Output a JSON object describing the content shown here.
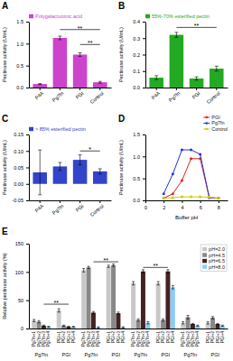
{
  "chart_data": [
    {
      "type": "bar",
      "title": "A",
      "categories": [
        "P4A",
        "Pg7fn",
        "PGI",
        "Control"
      ],
      "series": [
        {
          "name": "Polygalacturonic acid",
          "color": "#cc44cc",
          "values": [
            0.08,
            1.13,
            0.75,
            0.12
          ],
          "errors": [
            0.01,
            0.04,
            0.04,
            0.02
          ]
        }
      ],
      "ylabel": "Pectinase activity (U/mL)",
      "ylim": [
        0,
        1.5
      ],
      "yticks": [
        {
          "value": 0.0,
          "label": "0.0"
        },
        0.5,
        {
          "value": 1.0,
          "label": "1.0"
        },
        1.5
      ],
      "legend": "upper left",
      "annotations": [
        {
          "from": "Pg7fn",
          "to": "Control",
          "y": 1.32,
          "label": "**"
        },
        {
          "from": "PGI",
          "to": "Control",
          "y": 0.98,
          "label": "**"
        }
      ]
    },
    {
      "type": "bar",
      "title": "B",
      "categories": [
        "P4A",
        "Pg7fn",
        "PGI",
        "Control"
      ],
      "series": [
        {
          "name": "55%-70% esterified pectin",
          "color": "#22aa22",
          "values": [
            0.06,
            0.32,
            0.055,
            0.115
          ],
          "errors": [
            0.012,
            0.015,
            0.01,
            0.015
          ]
        }
      ],
      "ylabel": "Pectinase activity (U/mL)",
      "ylim": [
        0,
        0.4
      ],
      "yticks": [
        {
          "value": 0.0,
          "label": "0.0"
        },
        0.1,
        0.2,
        0.3,
        0.4
      ],
      "legend": "upper left",
      "annotations": [
        {
          "from": "Pg7fn",
          "to": "Control",
          "y": 0.365,
          "label": "**"
        }
      ]
    },
    {
      "type": "bar",
      "title": "C",
      "categories": [
        "P4A",
        "Pg7fn",
        "PGI",
        "Control"
      ],
      "series": [
        {
          "name": "> 85% esterified pectin",
          "color": "#3344cc",
          "values": [
            0.035,
            0.053,
            0.073,
            0.038
          ],
          "errors": [
            0.068,
            0.012,
            0.015,
            0.008
          ]
        }
      ],
      "ylabel": "Pectinase activity (U/mL)",
      "ylim": [
        -0.05,
        0.15
      ],
      "yticks": [
        -0.05,
        {
          "value": 0.0,
          "label": "0.00"
        },
        0.05,
        {
          "value": 0.1,
          "label": "0.10"
        },
        0.15
      ],
      "legend": "upper left",
      "annotations": [
        {
          "from": "PGI",
          "to": "Control",
          "y": 0.1,
          "label": "*"
        }
      ]
    },
    {
      "type": "line",
      "title": "D",
      "x": [
        2,
        3,
        4,
        5,
        6,
        7,
        8
      ],
      "series": [
        {
          "name": "PGI",
          "color": "#dd2222",
          "values": [
            0.05,
            0.15,
            0.45,
            0.95,
            0.95,
            0.06,
            0.05
          ]
        },
        {
          "name": "Pg7fn",
          "color": "#2233dd",
          "values": [
            0.15,
            0.6,
            1.15,
            1.15,
            1.05,
            0.06,
            0.05
          ]
        },
        {
          "name": "Control",
          "color": "#cccc00",
          "values": [
            0.05,
            0.06,
            0.08,
            0.08,
            0.08,
            0.07,
            0.05
          ]
        }
      ],
      "xlabel": "Buffer pH",
      "ylabel": "Pectinase activity (U/mL)",
      "xlim": [
        0,
        9
      ],
      "xticks": [
        0,
        2,
        4,
        6,
        8
      ],
      "ylim": [
        0,
        1.5
      ],
      "yticks": [
        {
          "value": 0.0,
          "label": "0.0"
        },
        0.5,
        {
          "value": 1.0,
          "label": "1.0"
        },
        1.5
      ],
      "legend": "upper right",
      "marker": "circle"
    },
    {
      "type": "bar",
      "title": "E",
      "categories": [
        "Pg7fn",
        "PGI",
        "Pg7fn",
        "PGI",
        "Pg7fn",
        "PGI",
        "Pg7fn",
        "PGI"
      ],
      "bar_labels": [
        [
          "Pg7fn+1",
          "Pg7fn+2",
          "Pg7fn+3",
          "Pg7fn+4"
        ],
        [
          "PGI+1",
          "PGI+2",
          "PGI+3",
          "PGI+4"
        ],
        [
          "Pg7fn+1",
          "Pg7fn+2",
          "Pg7fn+3",
          "Pg7fn+4"
        ],
        [
          "PGI+1",
          "PGI+2",
          "PGI+3",
          "PGI+4"
        ],
        [
          "Pg7fn+1",
          "Pg7fn+2",
          "Pg7fn+3",
          "Pg7fn+4"
        ],
        [
          "PGI+1",
          "PGI+2",
          "PGI+3",
          "PGI+4"
        ],
        [
          "Pg7fn+1",
          "Pg7fn+2",
          "Pg7fn+3",
          "Pg7fn+4"
        ],
        [
          "PGI+1",
          "PGI+2",
          "PGI+3",
          "PGI+4"
        ]
      ],
      "series": [
        {
          "name": "pH=2.0",
          "color": "#c8c8c8",
          "values": [
            14,
            32,
            103,
            110,
            80,
            80,
            10,
            10
          ],
          "errors": [
            2,
            3,
            3,
            2,
            3,
            3,
            2,
            2
          ]
        },
        {
          "name": "pH=4.5",
          "color": "#888888",
          "values": [
            12,
            5,
            108,
            112,
            15,
            15,
            20,
            19
          ],
          "errors": [
            2,
            1,
            2,
            2,
            2,
            2,
            3,
            2
          ]
        },
        {
          "name": "pH=6.5",
          "color": "#442222",
          "values": [
            5,
            3,
            28,
            27,
            101,
            101,
            8,
            8
          ],
          "errors": [
            1,
            1,
            2,
            2,
            3,
            3,
            1,
            1
          ]
        },
        {
          "name": "pH=8.0",
          "color": "#88ccff",
          "values": [
            3,
            3,
            2,
            2,
            10,
            73,
            5,
            5
          ],
          "errors": [
            1,
            1,
            1,
            1,
            2,
            3,
            1,
            1
          ]
        }
      ],
      "ylabel": "Relative pectinase activity (%)",
      "ylim": [
        0,
        150
      ],
      "yticks": [
        0,
        50,
        100,
        150
      ],
      "legend": "upper right",
      "annotations": [
        {
          "from": [
            0,
            2
          ],
          "to": [
            1,
            2
          ],
          "y": 43,
          "label": "**"
        },
        {
          "from": [
            2,
            2
          ],
          "to": [
            3,
            2
          ],
          "y": 118,
          "label": "**"
        },
        {
          "from": [
            4,
            2
          ],
          "to": [
            5,
            2
          ],
          "y": 108,
          "label": "**"
        }
      ]
    }
  ]
}
